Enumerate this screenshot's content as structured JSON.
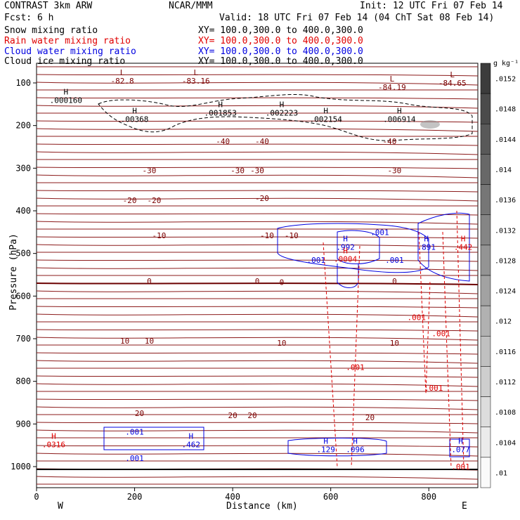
{
  "header": {
    "model_title": "CONTRAST   3km ARW",
    "org": "NCAR/MMM",
    "init": "Init: 12 UTC Fri 07 Feb 14",
    "fcst": "Fcst:     6 h",
    "valid": "Valid: 18 UTC Fri 07 Feb 14 (04 ChT Sat 08 Feb 14)",
    "fields": [
      {
        "name": "Snow mixing ratio",
        "xy": "XY= 100.0,300.0 to 400.0,300.0",
        "color": "#000000"
      },
      {
        "name": "Rain water mixing ratio",
        "xy": "XY= 100.0,300.0 to 400.0,300.0",
        "color": "#e00000"
      },
      {
        "name": "Cloud water mixing ratio",
        "xy": "XY= 100.0,300.0 to 400.0,300.0",
        "color": "#0000e0"
      },
      {
        "name": "Cloud ice mixing ratio",
        "xy": "XY= 100.0,300.0 to 400.0,300.0",
        "color": "#000000"
      }
    ]
  },
  "colorbar": {
    "unit": "g kg⁻¹",
    "ticks": [
      ".0152",
      ".0148",
      ".0144",
      ".014",
      ".0136",
      ".0132",
      ".0128",
      ".0124",
      ".012",
      ".0116",
      ".0112",
      ".0108",
      ".0104",
      ".01"
    ]
  },
  "chart_data": {
    "type": "contour",
    "xlabel": "Distance (km)",
    "ylabel": "Pressure (hPa)",
    "xlim": [
      0,
      900
    ],
    "ylim": [
      1050,
      70
    ],
    "x_ticks": [
      0,
      200,
      400,
      600,
      800
    ],
    "y_ticks": [
      100,
      200,
      300,
      400,
      500,
      600,
      700,
      800,
      900,
      1000
    ],
    "x_end_labels": {
      "left": "W",
      "right": "E"
    },
    "temperature_contours": [
      {
        "value": "-40",
        "labels": [
          [
            380,
            237
          ],
          [
            460,
            237
          ],
          [
            720,
            237
          ]
        ]
      },
      {
        "value": "-30",
        "labels": [
          [
            230,
            305
          ],
          [
            410,
            305
          ],
          [
            450,
            305
          ],
          [
            730,
            305
          ]
        ]
      },
      {
        "value": "-20",
        "labels": [
          [
            190,
            375
          ],
          [
            240,
            375
          ],
          [
            460,
            370
          ]
        ]
      },
      {
        "value": "-10",
        "labels": [
          [
            250,
            458
          ],
          [
            470,
            458
          ],
          [
            520,
            458
          ]
        ]
      },
      {
        "value": "0",
        "labels": [
          [
            230,
            565
          ],
          [
            450,
            565
          ],
          [
            500,
            567
          ],
          [
            730,
            565
          ]
        ]
      },
      {
        "value": "10",
        "labels": [
          [
            180,
            705
          ],
          [
            230,
            705
          ],
          [
            500,
            710
          ],
          [
            730,
            710
          ]
        ]
      },
      {
        "value": "20",
        "labels": [
          [
            210,
            875
          ],
          [
            400,
            880
          ],
          [
            440,
            880
          ],
          [
            680,
            885
          ]
        ]
      }
    ],
    "extrema_labels": [
      {
        "type": "L",
        "value": "-82.8",
        "x": 175,
        "p": 95
      },
      {
        "type": "L",
        "value": "-83.16",
        "x": 325,
        "p": 95
      },
      {
        "type": "L",
        "value": "-84.19",
        "x": 725,
        "p": 110
      },
      {
        "type": "L",
        "value": "-84.65",
        "x": 848,
        "p": 100
      },
      {
        "type": "H",
        "value": ".000160",
        "x": 60,
        "p": 140,
        "color": "#000000"
      },
      {
        "type": "H",
        "value": ".00368",
        "x": 200,
        "p": 185,
        "color": "#000000"
      },
      {
        "type": "H",
        "value": ".001853",
        "x": 375,
        "p": 170,
        "color": "#000000"
      },
      {
        "type": "H",
        "value": ".002223",
        "x": 500,
        "p": 170,
        "color": "#000000"
      },
      {
        "type": "H",
        "value": ".002154",
        "x": 590,
        "p": 185,
        "color": "#000000"
      },
      {
        "type": "H",
        "value": ".006914",
        "x": 740,
        "p": 185,
        "color": "#000000"
      },
      {
        "type": "H",
        "value": ".992",
        "x": 630,
        "p": 485,
        "color": "#0000e0"
      },
      {
        "type": "H",
        "value": ".891",
        "x": 795,
        "p": 485,
        "color": "#0000e0"
      },
      {
        "type": "H",
        "value": ".129",
        "x": 590,
        "p": 960,
        "color": "#0000e0"
      },
      {
        "type": "H",
        "value": ".096",
        "x": 650,
        "p": 960,
        "color": "#0000e0"
      },
      {
        "type": "H",
        "value": ".462",
        "x": 315,
        "p": 948,
        "color": "#0000e0"
      },
      {
        "type": "H",
        "value": ".077",
        "x": 865,
        "p": 960,
        "color": "#0000e0"
      },
      {
        "type": "H",
        "value": ".0316",
        "x": 35,
        "p": 948,
        "color": "#e00000"
      },
      {
        "type": "H",
        "value": ".0004",
        "x": 630,
        "p": 513,
        "color": "#e00000"
      },
      {
        "type": "H",
        "value": ".442",
        "x": 870,
        "p": 485,
        "color": "#e00000"
      }
    ],
    "small_labels": [
      {
        "value": ".001",
        "x": 700,
        "p": 450,
        "color": "#0000e0"
      },
      {
        "value": ".001",
        "x": 570,
        "p": 515,
        "color": "#0000e0"
      },
      {
        "value": ".001",
        "x": 730,
        "p": 515,
        "color": "#0000e0"
      },
      {
        "value": ".001",
        "x": 200,
        "p": 918,
        "color": "#0000e0"
      },
      {
        "value": ".001",
        "x": 200,
        "p": 980,
        "color": "#0000e0"
      },
      {
        "value": ".001",
        "x": 775,
        "p": 650,
        "color": "#e00000"
      },
      {
        "value": ".001",
        "x": 825,
        "p": 688,
        "color": "#e00000"
      },
      {
        "value": ".001",
        "x": 650,
        "p": 767,
        "color": "#e00000"
      },
      {
        "value": ".001",
        "x": 810,
        "p": 815,
        "color": "#e00000"
      },
      {
        "value": ".001",
        "x": 865,
        "p": 1000,
        "color": "#e00000"
      }
    ]
  }
}
